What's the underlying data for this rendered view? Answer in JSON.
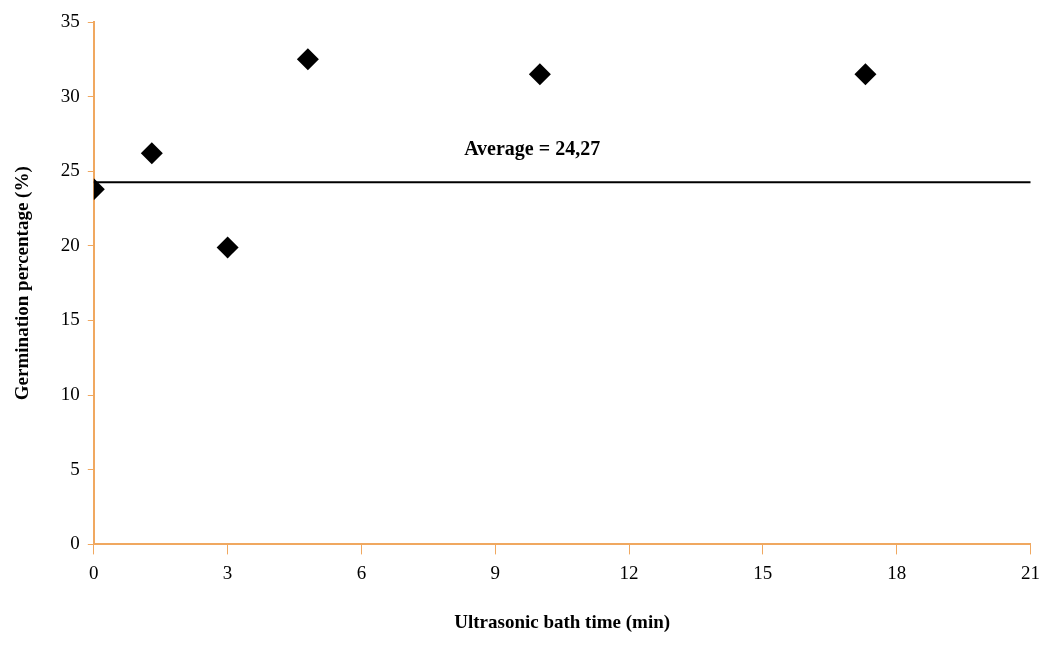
{
  "chart_data": {
    "type": "scatter",
    "xlabel": "Ultrasonic bath time (min)",
    "ylabel": "Germination percentage (%)",
    "x": [
      0,
      1.3,
      3,
      4.8,
      10,
      17.3
    ],
    "series": [
      {
        "color": "#000000",
        "values": [
          23.8,
          26.2,
          19.9,
          32.5,
          31.5,
          31.5
        ]
      }
    ],
    "xlim": [
      0,
      21
    ],
    "xticks": [
      0,
      3,
      6,
      9,
      12,
      15,
      18,
      21
    ],
    "ylim": [
      0,
      35
    ],
    "yticks": [
      0,
      5,
      10,
      15,
      20,
      25,
      30,
      35
    ],
    "ref_lines": [
      {
        "axis": "y",
        "value": 24.27,
        "label": "Average = 24,27",
        "color": "#000000"
      }
    ],
    "grid": false,
    "legend": false,
    "marker": "diamond"
  }
}
